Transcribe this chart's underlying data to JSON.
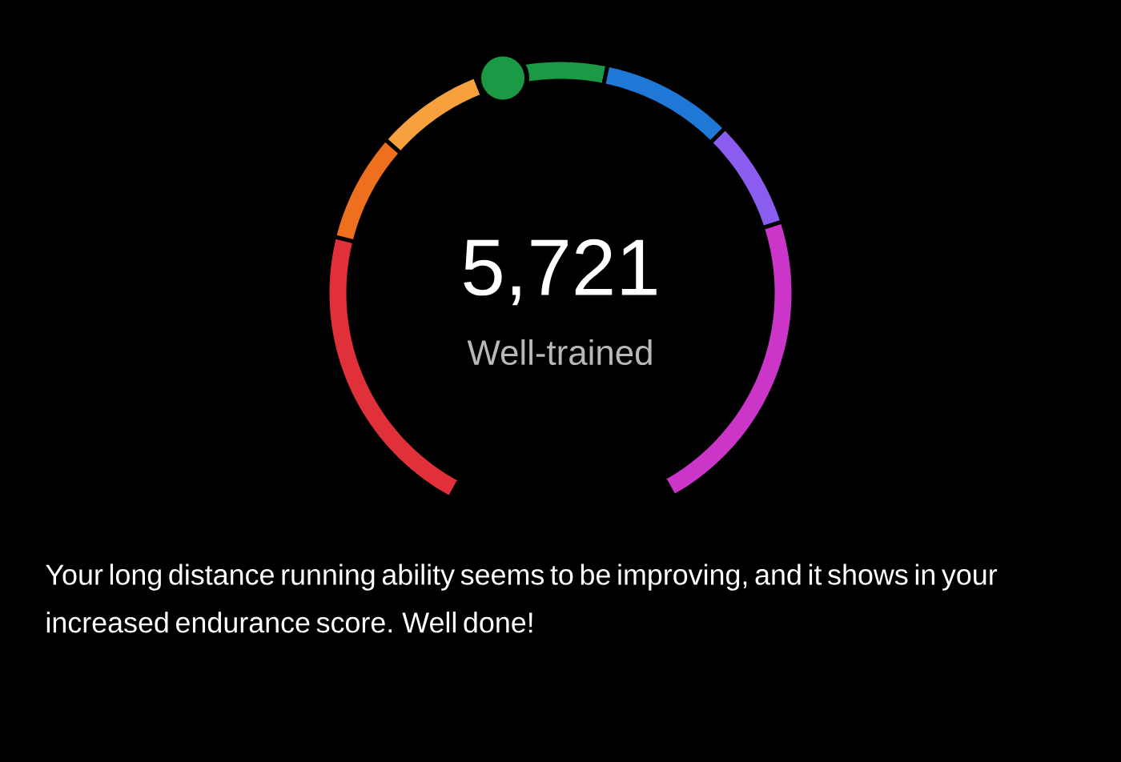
{
  "chart_data": {
    "type": "donut",
    "title": "5,721",
    "subtitle": "Well-trained",
    "categories": [
      null,
      null,
      null,
      null,
      null,
      null,
      null
    ],
    "values": [
      25,
      9,
      9,
      11,
      11,
      9,
      26
    ],
    "colors": [
      "#e0303a",
      "#ee6f1e",
      "#f7a03e",
      "#1a9a44",
      "#1f78d6",
      "#8b5cf0",
      "#cb36c9"
    ],
    "annotations": [
      "Your long distance running ability seems to be improving, and it shows in your increased endurance score. Well done!"
    ]
  }
}
